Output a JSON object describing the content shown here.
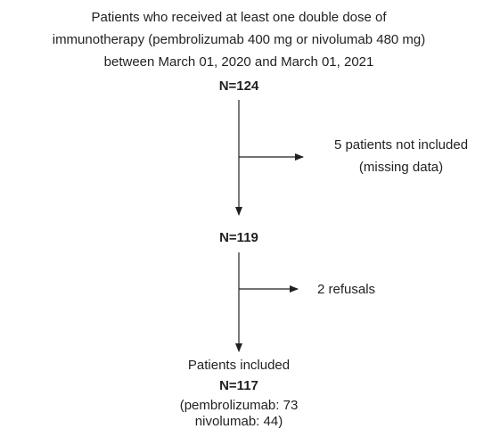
{
  "nodes": [
    {
      "lines": [
        "Patients who received at least one double dose of",
        "immunotherapy (pembrolizumab 400 mg or nivolumab 480 mg)",
        "between March 01, 2020 and March 01, 2021"
      ],
      "count": "N=124"
    },
    {
      "lines": [
        "5 patients not included",
        "(missing data)"
      ]
    },
    {
      "count": "N=119"
    },
    {
      "lines": [
        "2 refusals"
      ]
    },
    {
      "lines": [
        "Patients included"
      ],
      "count": "N=117",
      "details": [
        "(pembrolizumab: 73",
        "nivolumab: 44)"
      ]
    }
  ]
}
